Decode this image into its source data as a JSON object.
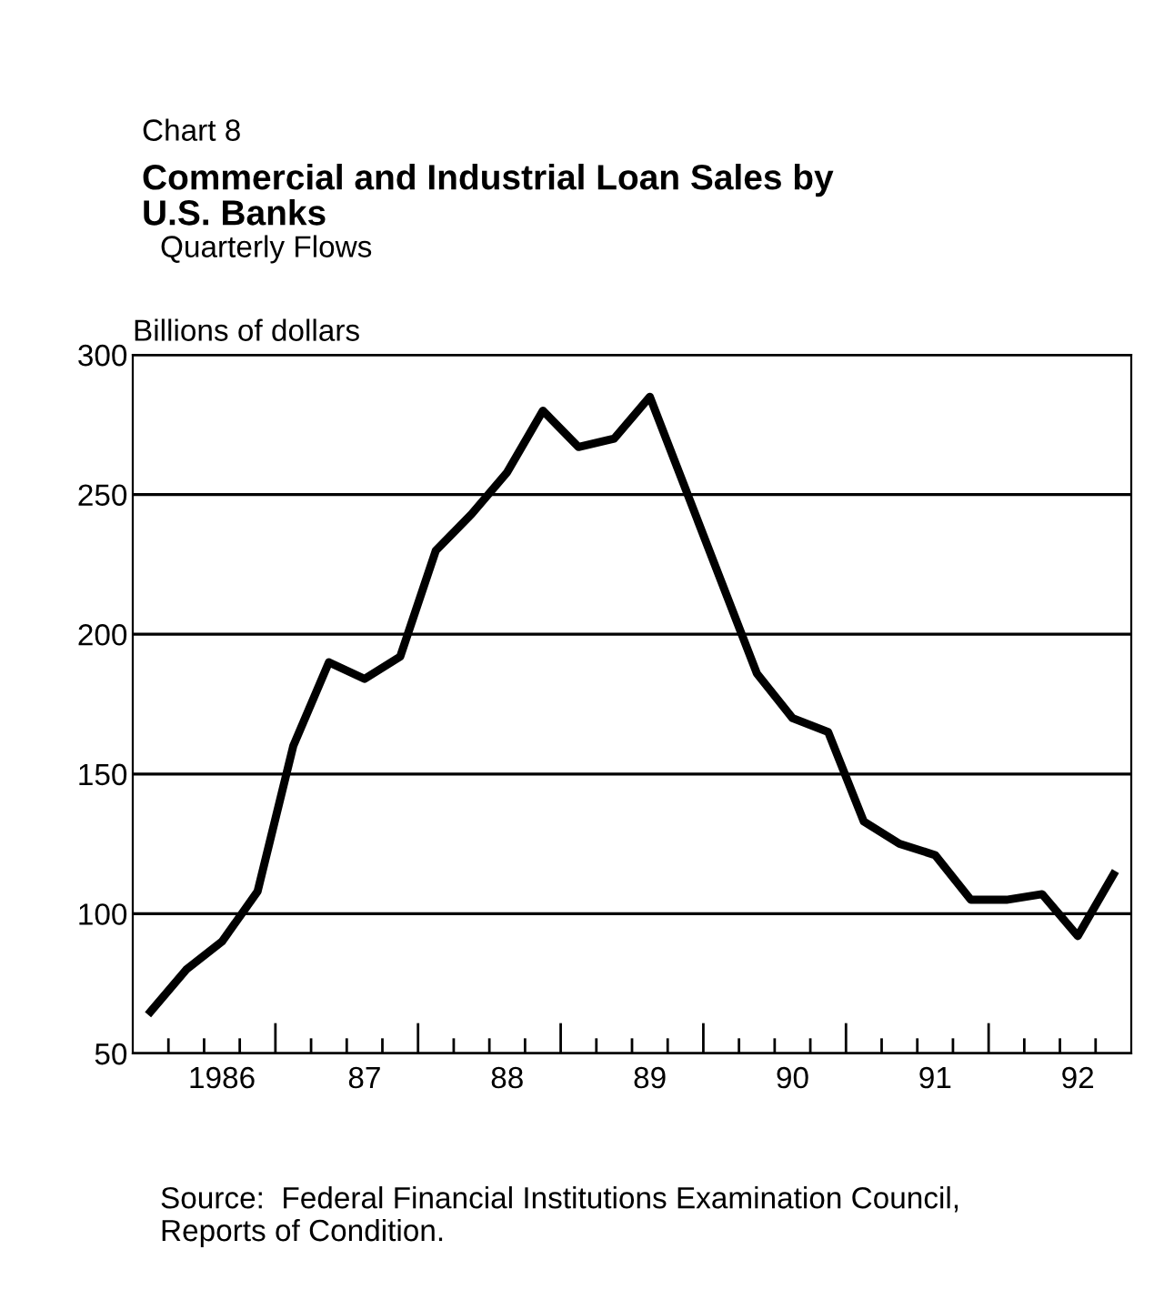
{
  "chart_data": {
    "type": "line",
    "title": "Commercial and Industrial Loan Sales by\nU.S. Banks",
    "subtitle": "Quarterly Flows",
    "ylabel": "Billions of dollars",
    "annotations": [
      "Chart 8",
      "Source:  Federal Financial Institutions Examination Council,\nReports of Condition."
    ],
    "categories": [
      null,
      null,
      "1986",
      null,
      null,
      null,
      "87",
      null,
      null,
      null,
      "88",
      null,
      null,
      null,
      "89",
      null,
      null,
      null,
      "90",
      null,
      null,
      null,
      "91",
      null,
      null,
      null,
      "92",
      null
    ],
    "series": [
      {
        "color": "#000000",
        "values": [
          65,
          80,
          90,
          108,
          160,
          190,
          184,
          192,
          230,
          243,
          258,
          280,
          267,
          270,
          285,
          252,
          219,
          186,
          170,
          165,
          133,
          125,
          121,
          105,
          105,
          107,
          92,
          114
        ]
      }
    ],
    "ylim": [
      50,
      300
    ],
    "yticks": [
      50,
      100,
      150,
      200,
      250,
      300
    ],
    "grid": "y",
    "marker": "none",
    "line_style": "solid",
    "legend": false
  }
}
